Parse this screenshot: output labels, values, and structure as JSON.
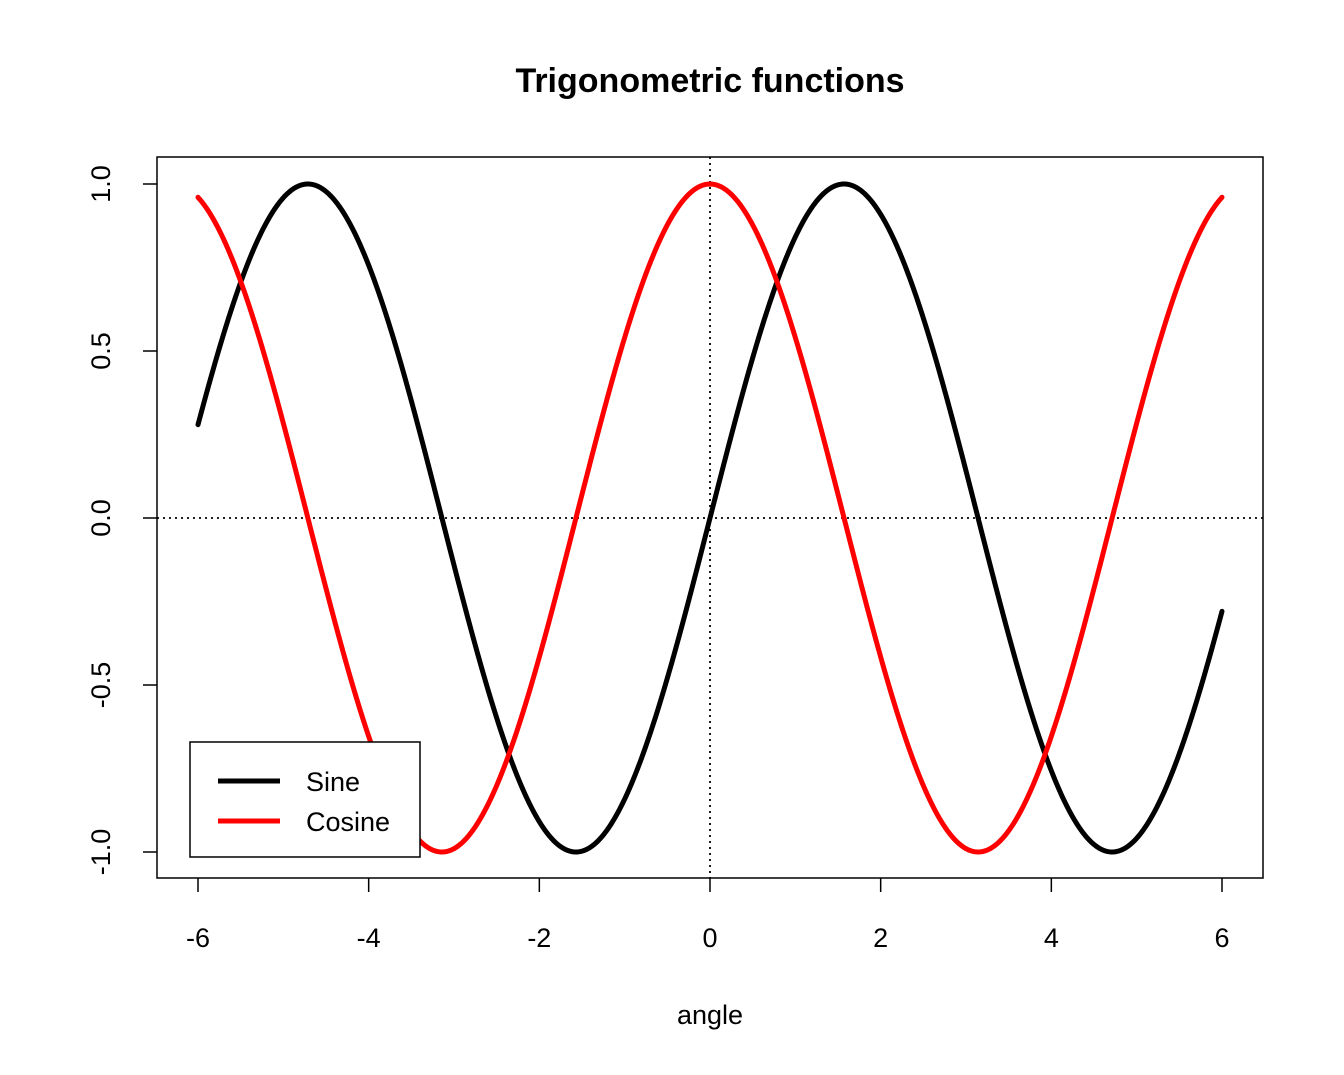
{
  "chart_data": {
    "type": "line",
    "title": "Trigonometric functions",
    "xlabel": "angle",
    "ylabel": "",
    "xlim": [
      -6,
      6
    ],
    "ylim": [
      -1,
      1
    ],
    "x_ticks": [
      -6,
      -4,
      -2,
      0,
      2,
      4,
      6
    ],
    "x_tick_labels": [
      "-6",
      "-4",
      "-2",
      "0",
      "2",
      "4",
      "6"
    ],
    "y_ticks": [
      -1.0,
      -0.5,
      0.0,
      0.5,
      1.0
    ],
    "y_tick_labels": [
      "-1.0",
      "-0.5",
      "0.0",
      "0.5",
      "1.0"
    ],
    "reference_lines": [
      {
        "orientation": "horizontal",
        "value": 0,
        "style": "dotted"
      },
      {
        "orientation": "vertical",
        "value": 0,
        "style": "dotted"
      }
    ],
    "grid": false,
    "legend_position": "bottom-left",
    "series": [
      {
        "name": "Sine",
        "function": "sin",
        "color": "#000000"
      },
      {
        "name": "Cosine",
        "function": "cos",
        "color": "#ff0000"
      }
    ]
  }
}
